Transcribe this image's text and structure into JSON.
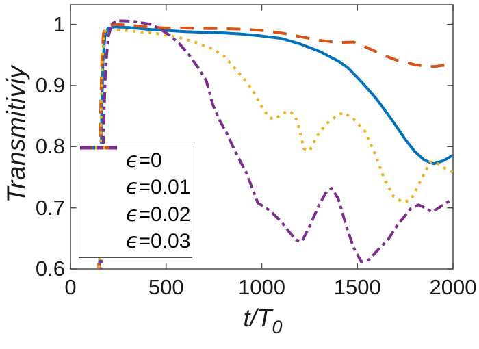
{
  "chart_data": {
    "type": "line",
    "title": "",
    "xlabel": {
      "base": "t/T",
      "sub": "0"
    },
    "ylabel": "Transmitiviy",
    "xlim": [
      0,
      2000
    ],
    "ylim": [
      0.6,
      1.032
    ],
    "xticks": [
      0,
      500,
      1000,
      1500,
      2000
    ],
    "yticks": [
      1,
      0.9,
      0.8,
      0.7,
      0.6
    ],
    "xtick_labels": [
      "0",
      "500",
      "1000",
      "1500",
      "2000"
    ],
    "ytick_labels": [
      "1",
      "0.9",
      "0.8",
      "0.7",
      "0.6"
    ],
    "grid": false,
    "legend_position": "inside-southwest",
    "axis_color": "#4a4a4a",
    "series": [
      {
        "name": "epsilon=0",
        "legend_sym": "ϵ",
        "legend_val": "=0",
        "color": "#0072BD",
        "style": "solid",
        "points": [
          [
            150,
            0.55
          ],
          [
            156,
            0.7
          ],
          [
            163,
            0.85
          ],
          [
            170,
            0.94
          ],
          [
            180,
            0.98
          ],
          [
            195,
            0.993
          ],
          [
            230,
            0.996
          ],
          [
            300,
            0.995
          ],
          [
            400,
            0.992
          ],
          [
            500,
            0.99
          ],
          [
            600,
            0.988
          ],
          [
            700,
            0.987
          ],
          [
            800,
            0.986
          ],
          [
            900,
            0.984
          ],
          [
            1000,
            0.981
          ],
          [
            1100,
            0.977
          ],
          [
            1200,
            0.968
          ],
          [
            1300,
            0.956
          ],
          [
            1400,
            0.94
          ],
          [
            1450,
            0.929
          ],
          [
            1500,
            0.913
          ],
          [
            1550,
            0.896
          ],
          [
            1600,
            0.878
          ],
          [
            1650,
            0.857
          ],
          [
            1700,
            0.835
          ],
          [
            1750,
            0.812
          ],
          [
            1800,
            0.792
          ],
          [
            1850,
            0.778
          ],
          [
            1900,
            0.772
          ],
          [
            1950,
            0.777
          ],
          [
            2000,
            0.786
          ]
        ]
      },
      {
        "name": "epsilon=0.01",
        "legend_sym": "ϵ",
        "legend_val": "=0.01",
        "color": "#D95319",
        "style": "dashed",
        "points": [
          [
            146,
            0.55
          ],
          [
            152,
            0.72
          ],
          [
            158,
            0.87
          ],
          [
            165,
            0.95
          ],
          [
            172,
            0.985
          ],
          [
            185,
            0.998
          ],
          [
            220,
            1.0
          ],
          [
            300,
            0.999
          ],
          [
            400,
            0.996
          ],
          [
            500,
            0.994
          ],
          [
            600,
            0.994
          ],
          [
            700,
            0.993
          ],
          [
            800,
            0.993
          ],
          [
            900,
            0.992
          ],
          [
            1000,
            0.99
          ],
          [
            1100,
            0.986
          ],
          [
            1200,
            0.98
          ],
          [
            1300,
            0.974
          ],
          [
            1400,
            0.97
          ],
          [
            1480,
            0.971
          ],
          [
            1550,
            0.962
          ],
          [
            1600,
            0.955
          ],
          [
            1650,
            0.948
          ],
          [
            1700,
            0.942
          ],
          [
            1750,
            0.938
          ],
          [
            1800,
            0.934
          ],
          [
            1850,
            0.932
          ],
          [
            1900,
            0.931
          ],
          [
            1950,
            0.933
          ],
          [
            2000,
            0.936
          ]
        ]
      },
      {
        "name": "epsilon=0.02",
        "legend_sym": "ϵ",
        "legend_val": "=0.02",
        "color": "#EDB120",
        "style": "dotted",
        "points": [
          [
            149,
            0.55
          ],
          [
            155,
            0.72
          ],
          [
            161,
            0.87
          ],
          [
            168,
            0.95
          ],
          [
            176,
            0.985
          ],
          [
            190,
            0.995
          ],
          [
            250,
            0.991
          ],
          [
            350,
            0.988
          ],
          [
            450,
            0.985
          ],
          [
            550,
            0.98
          ],
          [
            650,
            0.971
          ],
          [
            741,
            0.96
          ],
          [
            800,
            0.949
          ],
          [
            860,
            0.928
          ],
          [
            920,
            0.906
          ],
          [
            960,
            0.888
          ],
          [
            1000,
            0.865
          ],
          [
            1040,
            0.847
          ],
          [
            1070,
            0.845
          ],
          [
            1110,
            0.855
          ],
          [
            1150,
            0.858
          ],
          [
            1185,
            0.843
          ],
          [
            1220,
            0.797
          ],
          [
            1250,
            0.793
          ],
          [
            1290,
            0.818
          ],
          [
            1340,
            0.838
          ],
          [
            1400,
            0.852
          ],
          [
            1430,
            0.856
          ],
          [
            1480,
            0.845
          ],
          [
            1540,
            0.825
          ],
          [
            1590,
            0.79
          ],
          [
            1640,
            0.748
          ],
          [
            1690,
            0.718
          ],
          [
            1740,
            0.709
          ],
          [
            1780,
            0.713
          ],
          [
            1830,
            0.744
          ],
          [
            1880,
            0.775
          ],
          [
            1910,
            0.774
          ],
          [
            1950,
            0.766
          ],
          [
            2000,
            0.758
          ]
        ]
      },
      {
        "name": "epsilon=0.03",
        "legend_sym": "ϵ",
        "legend_val": "=0.03",
        "color": "#7E2F8E",
        "style": "dashdot",
        "points": [
          [
            157,
            0.55
          ],
          [
            165,
            0.7
          ],
          [
            174,
            0.84
          ],
          [
            184,
            0.93
          ],
          [
            198,
            0.98
          ],
          [
            215,
            1.0
          ],
          [
            240,
            1.006
          ],
          [
            330,
            1.005
          ],
          [
            420,
            1.0
          ],
          [
            470,
            0.992
          ],
          [
            520,
            0.982
          ],
          [
            570,
            0.968
          ],
          [
            620,
            0.95
          ],
          [
            670,
            0.928
          ],
          [
            710,
            0.908
          ],
          [
            745,
            0.868
          ],
          [
            780,
            0.843
          ],
          [
            815,
            0.823
          ],
          [
            860,
            0.793
          ],
          [
            920,
            0.757
          ],
          [
            980,
            0.708
          ],
          [
            1040,
            0.696
          ],
          [
            1100,
            0.678
          ],
          [
            1140,
            0.662
          ],
          [
            1180,
            0.647
          ],
          [
            1210,
            0.645
          ],
          [
            1250,
            0.67
          ],
          [
            1300,
            0.705
          ],
          [
            1340,
            0.727
          ],
          [
            1365,
            0.732
          ],
          [
            1400,
            0.715
          ],
          [
            1440,
            0.672
          ],
          [
            1480,
            0.635
          ],
          [
            1520,
            0.612
          ],
          [
            1560,
            0.615
          ],
          [
            1610,
            0.632
          ],
          [
            1660,
            0.648
          ],
          [
            1710,
            0.672
          ],
          [
            1780,
            0.699
          ],
          [
            1820,
            0.705
          ],
          [
            1860,
            0.699
          ],
          [
            1890,
            0.693
          ],
          [
            1940,
            0.703
          ],
          [
            2000,
            0.715
          ]
        ]
      }
    ]
  }
}
